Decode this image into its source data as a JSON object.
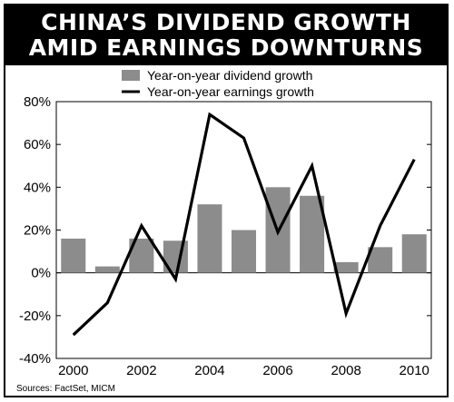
{
  "title": {
    "line1": "CHINA’S DIVIDEND GROWTH",
    "line2": "AMID EARNINGS DOWNTURNS"
  },
  "source": "Sources: FactSet, MICM",
  "chart_data": {
    "type": "bar",
    "categories": [
      "2000",
      "2001",
      "2002",
      "2003",
      "2004",
      "2005",
      "2006",
      "2007",
      "2008",
      "2009",
      "2010"
    ],
    "series": [
      {
        "name": "Year-on-year dividend growth",
        "type": "bar",
        "color": "#8c8c8c",
        "values": [
          16,
          3,
          16,
          15,
          32,
          20,
          40,
          36,
          5,
          12,
          18
        ]
      },
      {
        "name": "Year-on-year earnings growth",
        "type": "line",
        "color": "#000000",
        "values": [
          -29,
          -14,
          22,
          -3,
          74,
          63,
          19,
          50,
          -19,
          22,
          53
        ]
      }
    ],
    "ylim": [
      -40,
      80
    ],
    "yticks": [
      -40,
      -20,
      0,
      20,
      40,
      60,
      80
    ],
    "ytick_labels": [
      "-40%",
      "-20%",
      "0%",
      "20%",
      "40%",
      "60%",
      "80%"
    ],
    "xtick_labels": [
      "2000",
      "2002",
      "2004",
      "2006",
      "2008",
      "2010"
    ],
    "legend_position": "top-center",
    "grid": false
  }
}
